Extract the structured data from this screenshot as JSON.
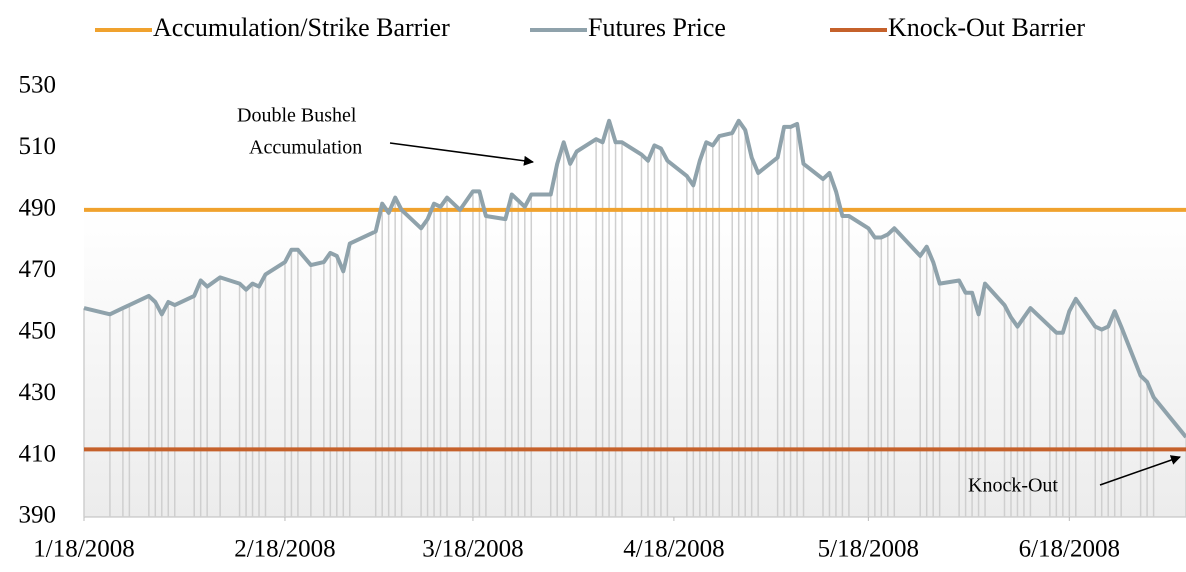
{
  "chart_data": {
    "type": "line",
    "x": [
      "2008-01-18",
      "2008-01-22",
      "2008-01-24",
      "2008-01-25",
      "2008-01-28",
      "2008-01-29",
      "2008-01-30",
      "2008-01-31",
      "2008-02-01",
      "2008-02-04",
      "2008-02-05",
      "2008-02-06",
      "2008-02-08",
      "2008-02-11",
      "2008-02-12",
      "2008-02-13",
      "2008-02-14",
      "2008-02-15",
      "2008-02-18",
      "2008-02-19",
      "2008-02-20",
      "2008-02-22",
      "2008-02-24",
      "2008-02-25",
      "2008-02-26",
      "2008-02-27",
      "2008-02-28",
      "2008-03-03",
      "2008-03-04",
      "2008-03-05",
      "2008-03-06",
      "2008-03-07",
      "2008-03-10",
      "2008-03-11",
      "2008-03-12",
      "2008-03-13",
      "2008-03-14",
      "2008-03-16",
      "2008-03-18",
      "2008-03-19",
      "2008-03-20",
      "2008-03-23",
      "2008-03-24",
      "2008-03-25",
      "2008-03-26",
      "2008-03-27",
      "2008-03-30",
      "2008-03-31",
      "2008-04-01",
      "2008-04-02",
      "2008-04-03",
      "2008-04-06",
      "2008-04-07",
      "2008-04-08",
      "2008-04-09",
      "2008-04-10",
      "2008-04-13",
      "2008-04-14",
      "2008-04-15",
      "2008-04-16",
      "2008-04-17",
      "2008-04-20",
      "2008-04-21",
      "2008-04-22",
      "2008-04-23",
      "2008-04-24",
      "2008-04-25",
      "2008-04-27",
      "2008-04-28",
      "2008-04-29",
      "2008-04-30",
      "2008-05-01",
      "2008-05-04",
      "2008-05-05",
      "2008-05-06",
      "2008-05-07",
      "2008-05-08",
      "2008-05-11",
      "2008-05-12",
      "2008-05-13",
      "2008-05-14",
      "2008-05-15",
      "2008-05-18",
      "2008-05-19",
      "2008-05-20",
      "2008-05-21",
      "2008-05-22",
      "2008-05-26",
      "2008-05-27",
      "2008-05-28",
      "2008-05-29",
      "2008-06-01",
      "2008-06-02",
      "2008-06-03",
      "2008-06-04",
      "2008-06-05",
      "2008-06-08",
      "2008-06-09",
      "2008-06-10",
      "2008-06-11",
      "2008-06-12",
      "2008-06-15",
      "2008-06-16",
      "2008-06-17",
      "2008-06-18",
      "2008-06-19",
      "2008-06-22",
      "2008-06-23",
      "2008-06-24",
      "2008-06-25",
      "2008-06-26",
      "2008-06-29",
      "2008-06-30",
      "2008-07-01",
      "2008-07-06"
    ],
    "series": [
      {
        "name": "Accumulation/Strike Barrier",
        "color": "#f0a22e",
        "value": 490
      },
      {
        "name": "Futures Price",
        "color": "#8fa2ab",
        "values": [
          458,
          456,
          458,
          459,
          462,
          460,
          456,
          460,
          459,
          462,
          467,
          465,
          468,
          466,
          464,
          466,
          465,
          469,
          473,
          477,
          477,
          472,
          473,
          476,
          475,
          470,
          479,
          483,
          492,
          489,
          494,
          490,
          484,
          487,
          492,
          491,
          494,
          490,
          496,
          496,
          488,
          487,
          495,
          493,
          491,
          495,
          495,
          505,
          512,
          505,
          509,
          513,
          512,
          519,
          512,
          512,
          508,
          506,
          511,
          510,
          506,
          501,
          498,
          506,
          512,
          511,
          514,
          515,
          519,
          516,
          507,
          502,
          507,
          517,
          517,
          518,
          505,
          500,
          502,
          496,
          488,
          488,
          484,
          481,
          481,
          482,
          484,
          475,
          478,
          473,
          466,
          467,
          463,
          463,
          456,
          466,
          459,
          455,
          452,
          455,
          458,
          452,
          450,
          450,
          457,
          461,
          452,
          451,
          452,
          457,
          452,
          436,
          434,
          429,
          416
        ]
      },
      {
        "name": "Knock-Out Barrier",
        "color": "#c5612b",
        "value": 412
      }
    ],
    "xlim": [
      "2008-01-18",
      "2008-07-06"
    ],
    "xticks": [
      {
        "value": "2008-01-18",
        "label": "1/18/2008"
      },
      {
        "value": "2008-02-18",
        "label": "2/18/2008"
      },
      {
        "value": "2008-03-18",
        "label": "3/18/2008"
      },
      {
        "value": "2008-04-18",
        "label": "4/18/2008"
      },
      {
        "value": "2008-05-18",
        "label": "5/18/2008"
      },
      {
        "value": "2008-06-18",
        "label": "6/18/2008"
      }
    ],
    "ylim": [
      390,
      530
    ],
    "yticks": [
      390,
      410,
      430,
      450,
      470,
      490,
      510,
      530
    ],
    "drop_lines": true,
    "annotations": [
      {
        "text": [
          "Double Bushel",
          "Accumulation"
        ]
      },
      {
        "text": "Knock-Out"
      }
    ]
  }
}
